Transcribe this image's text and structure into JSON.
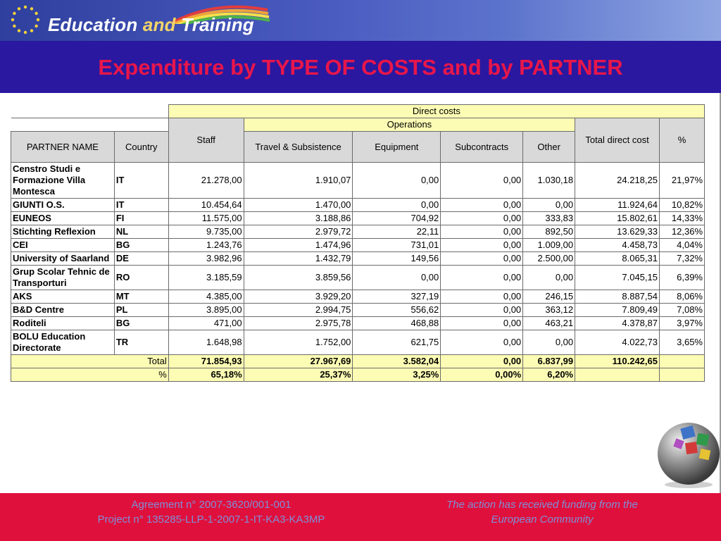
{
  "header": {
    "brand_part1": "Education",
    "brand_and": "and",
    "brand_part2": "Training",
    "title": "Expenditure by TYPE OF COSTS and by PARTNER"
  },
  "table": {
    "group_direct": "Direct costs",
    "group_operations": "Operations",
    "col_partner": "PARTNER NAME",
    "col_country": "Country",
    "col_staff": "Staff",
    "col_travel": "Travel & Subsistence",
    "col_equipment": "Equipment",
    "col_subcontracts": "Subcontracts",
    "col_other": "Other",
    "col_total_direct": "Total direct cost",
    "col_pct": "%",
    "rows": [
      {
        "partner": "Censtro Studi e Formazione Villa Montesca",
        "country": "IT",
        "staff": "21.278,00",
        "travel": "1.910,07",
        "equipment": "0,00",
        "subcontracts": "0,00",
        "other": "1.030,18",
        "total": "24.218,25",
        "pct": "21,97%"
      },
      {
        "partner": "GIUNTI O.S.",
        "country": "IT",
        "staff": "10.454,64",
        "travel": "1.470,00",
        "equipment": "0,00",
        "subcontracts": "0,00",
        "other": "0,00",
        "total": "11.924,64",
        "pct": "10,82%"
      },
      {
        "partner": "EUNEOS",
        "country": "FI",
        "staff": "11.575,00",
        "travel": "3.188,86",
        "equipment": "704,92",
        "subcontracts": "0,00",
        "other": "333,83",
        "total": "15.802,61",
        "pct": "14,33%"
      },
      {
        "partner": "Stichting Reflexion",
        "country": "NL",
        "staff": "9.735,00",
        "travel": "2.979,72",
        "equipment": "22,11",
        "subcontracts": "0,00",
        "other": "892,50",
        "total": "13.629,33",
        "pct": "12,36%"
      },
      {
        "partner": "CEI",
        "country": "BG",
        "staff": "1.243,76",
        "travel": "1.474,96",
        "equipment": "731,01",
        "subcontracts": "0,00",
        "other": "1.009,00",
        "total": "4.458,73",
        "pct": "4,04%"
      },
      {
        "partner": "University of Saarland",
        "country": "DE",
        "staff": "3.982,96",
        "travel": "1.432,79",
        "equipment": "149,56",
        "subcontracts": "0,00",
        "other": "2.500,00",
        "total": "8.065,31",
        "pct": "7,32%"
      },
      {
        "partner": "Grup Scolar Tehnic de Transporturi",
        "country": "RO",
        "staff": "3.185,59",
        "travel": "3.859,56",
        "equipment": "0,00",
        "subcontracts": "0,00",
        "other": "0,00",
        "total": "7.045,15",
        "pct": "6,39%"
      },
      {
        "partner": "AKS",
        "country": "MT",
        "staff": "4.385,00",
        "travel": "3.929,20",
        "equipment": "327,19",
        "subcontracts": "0,00",
        "other": "246,15",
        "total": "8.887,54",
        "pct": "8,06%"
      },
      {
        "partner": "B&D Centre",
        "country": "PL",
        "staff": "3.895,00",
        "travel": "2.994,75",
        "equipment": "556,62",
        "subcontracts": "0,00",
        "other": "363,12",
        "total": "7.809,49",
        "pct": "7,08%"
      },
      {
        "partner": "Roditeli",
        "country": "BG",
        "staff": "471,00",
        "travel": "2.975,78",
        "equipment": "468,88",
        "subcontracts": "0,00",
        "other": "463,21",
        "total": "4.378,87",
        "pct": "3,97%"
      },
      {
        "partner": "BOLU Education Directorate",
        "country": "TR",
        "staff": "1.648,98",
        "travel": "1.752,00",
        "equipment": "621,75",
        "subcontracts": "0,00",
        "other": "0,00",
        "total": "4.022,73",
        "pct": "3,65%"
      }
    ],
    "total_row": {
      "label": "Total",
      "staff": "71.854,93",
      "travel": "27.967,69",
      "equipment": "3.582,04",
      "subcontracts": "0,00",
      "other": "6.837,99",
      "total": "110.242,65"
    },
    "pct_row": {
      "label": "%",
      "staff": "65,18%",
      "travel": "25,37%",
      "equipment": "3,25%",
      "subcontracts": "0,00%",
      "other": "6,20%"
    }
  },
  "footer": {
    "agreement": "Agreement n° 2007-3620/001-001",
    "project": "Project n° 135285-LLP-1-2007-1-IT-KA3-KA3MP",
    "funding_line1": "The action has received funding from the",
    "funding_line2": "European Community"
  },
  "colors": {
    "header_band": "#2a18a0",
    "title": "#e8164a",
    "footer": "#e0103c",
    "table_yellow": "#fcfcb4",
    "table_grey": "#d9d9d9"
  }
}
